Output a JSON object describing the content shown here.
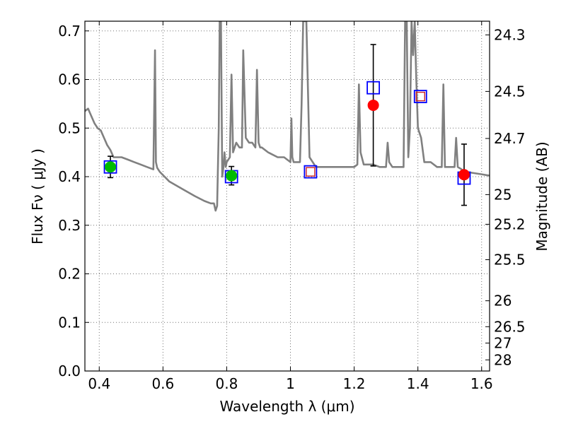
{
  "chart_data": {
    "type": "scatter",
    "title": "",
    "xlabel": "Wavelength  λ (μm)",
    "ylabel": "Flux  Fν  ( μJy )",
    "y2label": "Magnitude (AB)",
    "xlim": [
      0.355,
      1.625
    ],
    "ylim": [
      0.0,
      0.72
    ],
    "grid": true,
    "x_ticks": [
      0.4,
      0.6,
      0.8,
      1.0,
      1.2,
      1.4,
      1.6
    ],
    "x_tick_labels": [
      "0.4",
      "0.6",
      "0.8",
      "1",
      "1.2",
      "1.4",
      "1.6"
    ],
    "y_ticks": [
      0.0,
      0.1,
      0.2,
      0.3,
      0.4,
      0.5,
      0.6,
      0.7
    ],
    "y_tick_labels": [
      "0.0",
      "0.1",
      "0.2",
      "0.3",
      "0.4",
      "0.5",
      "0.6",
      "0.7"
    ],
    "y2_ticks": [
      {
        "label": "24.3",
        "mag": 24.3
      },
      {
        "label": "24.5",
        "mag": 24.5
      },
      {
        "label": "24.7",
        "mag": 24.7
      },
      {
        "label": "25",
        "mag": 25.0
      },
      {
        "label": "25.2",
        "mag": 25.2
      },
      {
        "label": "25.5",
        "mag": 25.5
      },
      {
        "label": "26",
        "mag": 26.0
      },
      {
        "label": "26.5",
        "mag": 26.5
      },
      {
        "label": "27",
        "mag": 27.0
      },
      {
        "label": "28",
        "mag": 28.0
      }
    ],
    "series": [
      {
        "style": "line",
        "color": "#808080",
        "x": [
          0.355,
          0.365,
          0.375,
          0.385,
          0.395,
          0.405,
          0.415,
          0.425,
          0.435,
          0.445,
          0.455,
          0.47,
          0.49,
          0.51,
          0.53,
          0.55,
          0.57,
          0.575,
          0.578,
          0.582,
          0.59,
          0.62,
          0.66,
          0.7,
          0.73,
          0.75,
          0.76,
          0.765,
          0.77,
          0.775,
          0.778,
          0.782,
          0.786,
          0.79,
          0.793,
          0.797,
          0.8,
          0.81,
          0.815,
          0.82,
          0.83,
          0.84,
          0.848,
          0.852,
          0.86,
          0.87,
          0.88,
          0.89,
          0.895,
          0.9,
          0.905,
          0.91,
          0.93,
          0.96,
          0.98,
          1.0,
          1.003,
          1.006,
          1.01,
          1.02,
          1.03,
          1.035,
          1.04,
          1.05,
          1.06,
          1.08,
          1.1,
          1.14,
          1.18,
          1.2,
          1.21,
          1.215,
          1.22,
          1.23,
          1.26,
          1.28,
          1.3,
          1.305,
          1.31,
          1.32,
          1.34,
          1.355,
          1.36,
          1.365,
          1.37,
          1.375,
          1.38,
          1.385,
          1.39,
          1.395,
          1.4,
          1.41,
          1.42,
          1.44,
          1.46,
          1.475,
          1.48,
          1.485,
          1.5,
          1.515,
          1.52,
          1.525,
          1.55,
          1.6,
          1.625
        ],
        "y": [
          0.535,
          0.54,
          0.525,
          0.51,
          0.5,
          0.495,
          0.48,
          0.465,
          0.455,
          0.44,
          0.44,
          0.44,
          0.435,
          0.43,
          0.425,
          0.42,
          0.415,
          0.66,
          0.43,
          0.418,
          0.41,
          0.39,
          0.375,
          0.36,
          0.35,
          0.345,
          0.345,
          0.33,
          0.34,
          0.5,
          0.72,
          0.72,
          0.4,
          0.42,
          0.45,
          0.42,
          0.43,
          0.44,
          0.61,
          0.45,
          0.47,
          0.46,
          0.46,
          0.66,
          0.48,
          0.47,
          0.47,
          0.46,
          0.62,
          0.47,
          0.46,
          0.46,
          0.45,
          0.44,
          0.44,
          0.43,
          0.52,
          0.44,
          0.43,
          0.43,
          0.43,
          0.55,
          0.72,
          0.72,
          0.44,
          0.42,
          0.42,
          0.42,
          0.42,
          0.42,
          0.425,
          0.59,
          0.45,
          0.425,
          0.425,
          0.42,
          0.42,
          0.47,
          0.43,
          0.42,
          0.42,
          0.42,
          0.72,
          0.72,
          0.44,
          0.5,
          0.72,
          0.65,
          0.72,
          0.6,
          0.5,
          0.48,
          0.43,
          0.43,
          0.42,
          0.42,
          0.59,
          0.42,
          0.42,
          0.42,
          0.48,
          0.42,
          0.41,
          0.405,
          0.402
        ]
      },
      {
        "style": "open-square",
        "color": "#0000ff",
        "x": [
          0.435,
          0.815,
          1.063,
          1.26,
          1.408,
          1.545
        ],
        "y": [
          0.42,
          0.4,
          0.41,
          0.583,
          0.565,
          0.397
        ]
      },
      {
        "style": "open-square-small",
        "color": "#cc2222",
        "x": [
          1.063,
          1.408
        ],
        "y": [
          0.41,
          0.565
        ]
      },
      {
        "style": "filled-circle",
        "color": "#00bb00",
        "x": [
          0.435,
          0.815
        ],
        "y": [
          0.42,
          0.402
        ],
        "yerr": [
          0.022,
          0.019
        ]
      },
      {
        "style": "filled-circle",
        "color": "#ff0000",
        "x": [
          1.26,
          1.545
        ],
        "y": [
          0.547,
          0.404
        ],
        "yerr_low": [
          0.125,
          0.063
        ],
        "yerr_high": [
          0.125,
          0.063
        ]
      }
    ]
  }
}
